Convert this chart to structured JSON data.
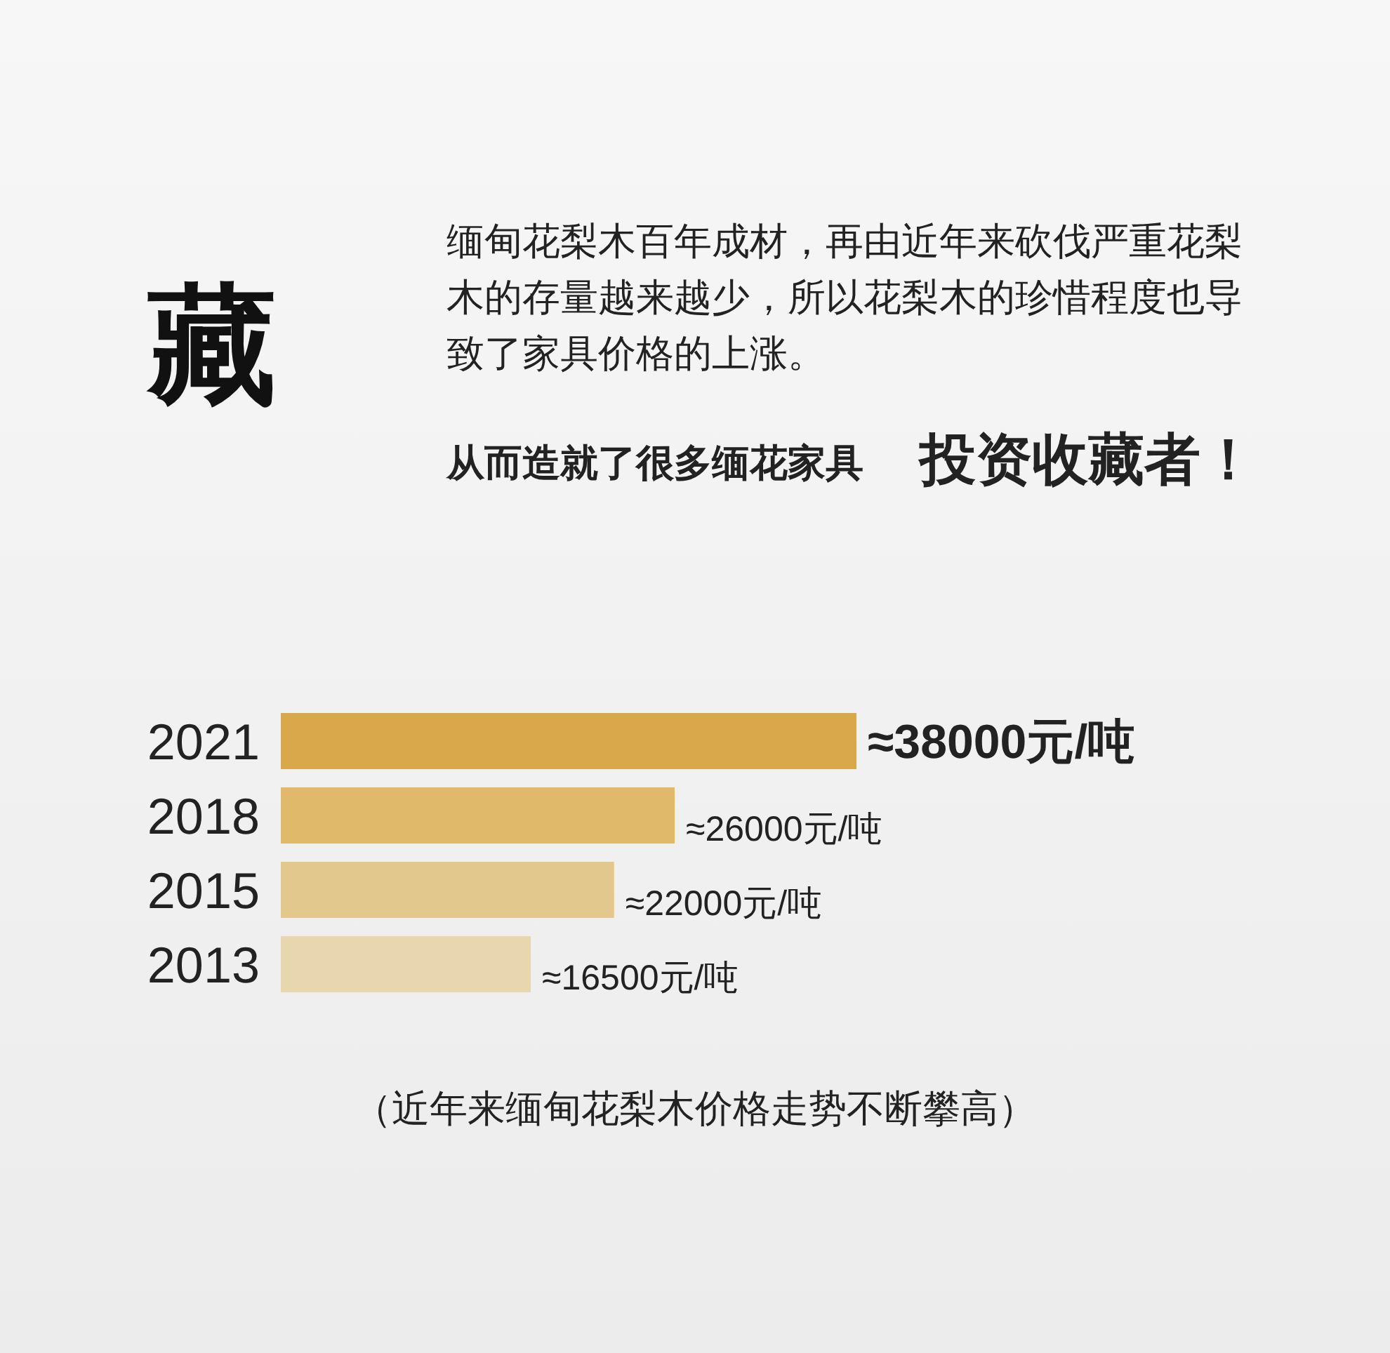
{
  "chart_data": {
    "type": "bar",
    "orientation": "horizontal",
    "title": "藏",
    "subtitle": "缅甸花梨木百年成材，再由近年来砍伐严重花梨木的存量越来越少，所以花梨木的珍惜程度也导致了家具价格的上涨。",
    "annotations": [
      "从而造就了很多缅花家具",
      "投资收藏者！",
      "（近年来缅甸花梨木价格走势不断攀高）"
    ],
    "categories": [
      "2021",
      "2018",
      "2015",
      "2013"
    ],
    "values": [
      38000,
      26000,
      22000,
      16500
    ],
    "colors": [
      "#d9a84a",
      "#e0b96a",
      "#e3c88e",
      "#e8d6ae"
    ],
    "value_labels": [
      "≈38000元/吨",
      "≈26000元/吨",
      "≈22000元/吨",
      "≈16500元/吨"
    ]
  }
}
